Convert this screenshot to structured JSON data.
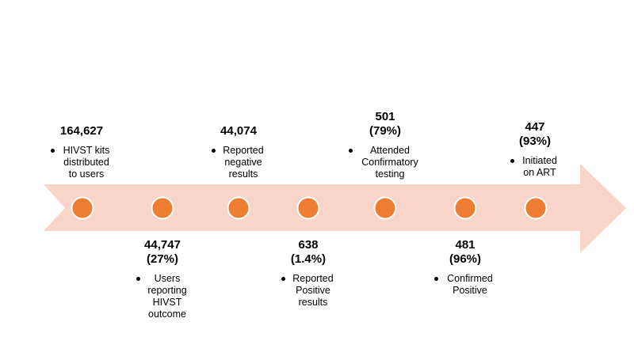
{
  "colors": {
    "arrow_fill": "#f8d5c8",
    "node_fill": "#ed7d31",
    "node_stroke": "#ffffff"
  },
  "steps": [
    {
      "count": "164,627",
      "percent": "",
      "description": "HIVST kits distributed to users",
      "position": "above"
    },
    {
      "count": "44,747",
      "percent": "(27%)",
      "description": "Users reporting HIVST outcome",
      "position": "below"
    },
    {
      "count": "44,074",
      "percent": "",
      "description": "Reported negative results",
      "position": "above"
    },
    {
      "count": "638",
      "percent": "(1.4%)",
      "description": "Reported Positive results",
      "position": "below"
    },
    {
      "count": "501",
      "percent": "(79%)",
      "description": "Attended Confirmatory testing",
      "position": "above"
    },
    {
      "count": "481",
      "percent": "(96%)",
      "description": "Confirmed Positive",
      "position": "below"
    },
    {
      "count": "447",
      "percent": "(93%)",
      "description": "Initiated on ART",
      "position": "above"
    }
  ]
}
